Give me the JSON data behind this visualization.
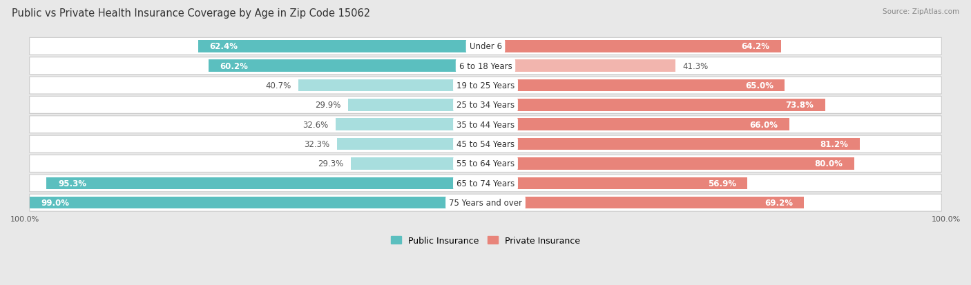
{
  "title": "Public vs Private Health Insurance Coverage by Age in Zip Code 15062",
  "source": "Source: ZipAtlas.com",
  "categories": [
    "Under 6",
    "6 to 18 Years",
    "19 to 25 Years",
    "25 to 34 Years",
    "35 to 44 Years",
    "45 to 54 Years",
    "55 to 64 Years",
    "65 to 74 Years",
    "75 Years and over"
  ],
  "public_values": [
    62.4,
    60.2,
    40.7,
    29.9,
    32.6,
    32.3,
    29.3,
    95.3,
    99.0
  ],
  "private_values": [
    64.2,
    41.3,
    65.0,
    73.8,
    66.0,
    81.2,
    80.0,
    56.9,
    69.2
  ],
  "public_color": "#5bbfbf",
  "private_color": "#e8847a",
  "public_color_light": "#a8dede",
  "private_color_light": "#f2b5ae",
  "background_color": "#e8e8e8",
  "row_bg_color": "#f5f5f5",
  "title_fontsize": 10.5,
  "label_fontsize": 8.5,
  "value_fontsize": 8.5,
  "legend_fontsize": 9,
  "axis_fontsize": 8,
  "threshold_white_label": 45
}
